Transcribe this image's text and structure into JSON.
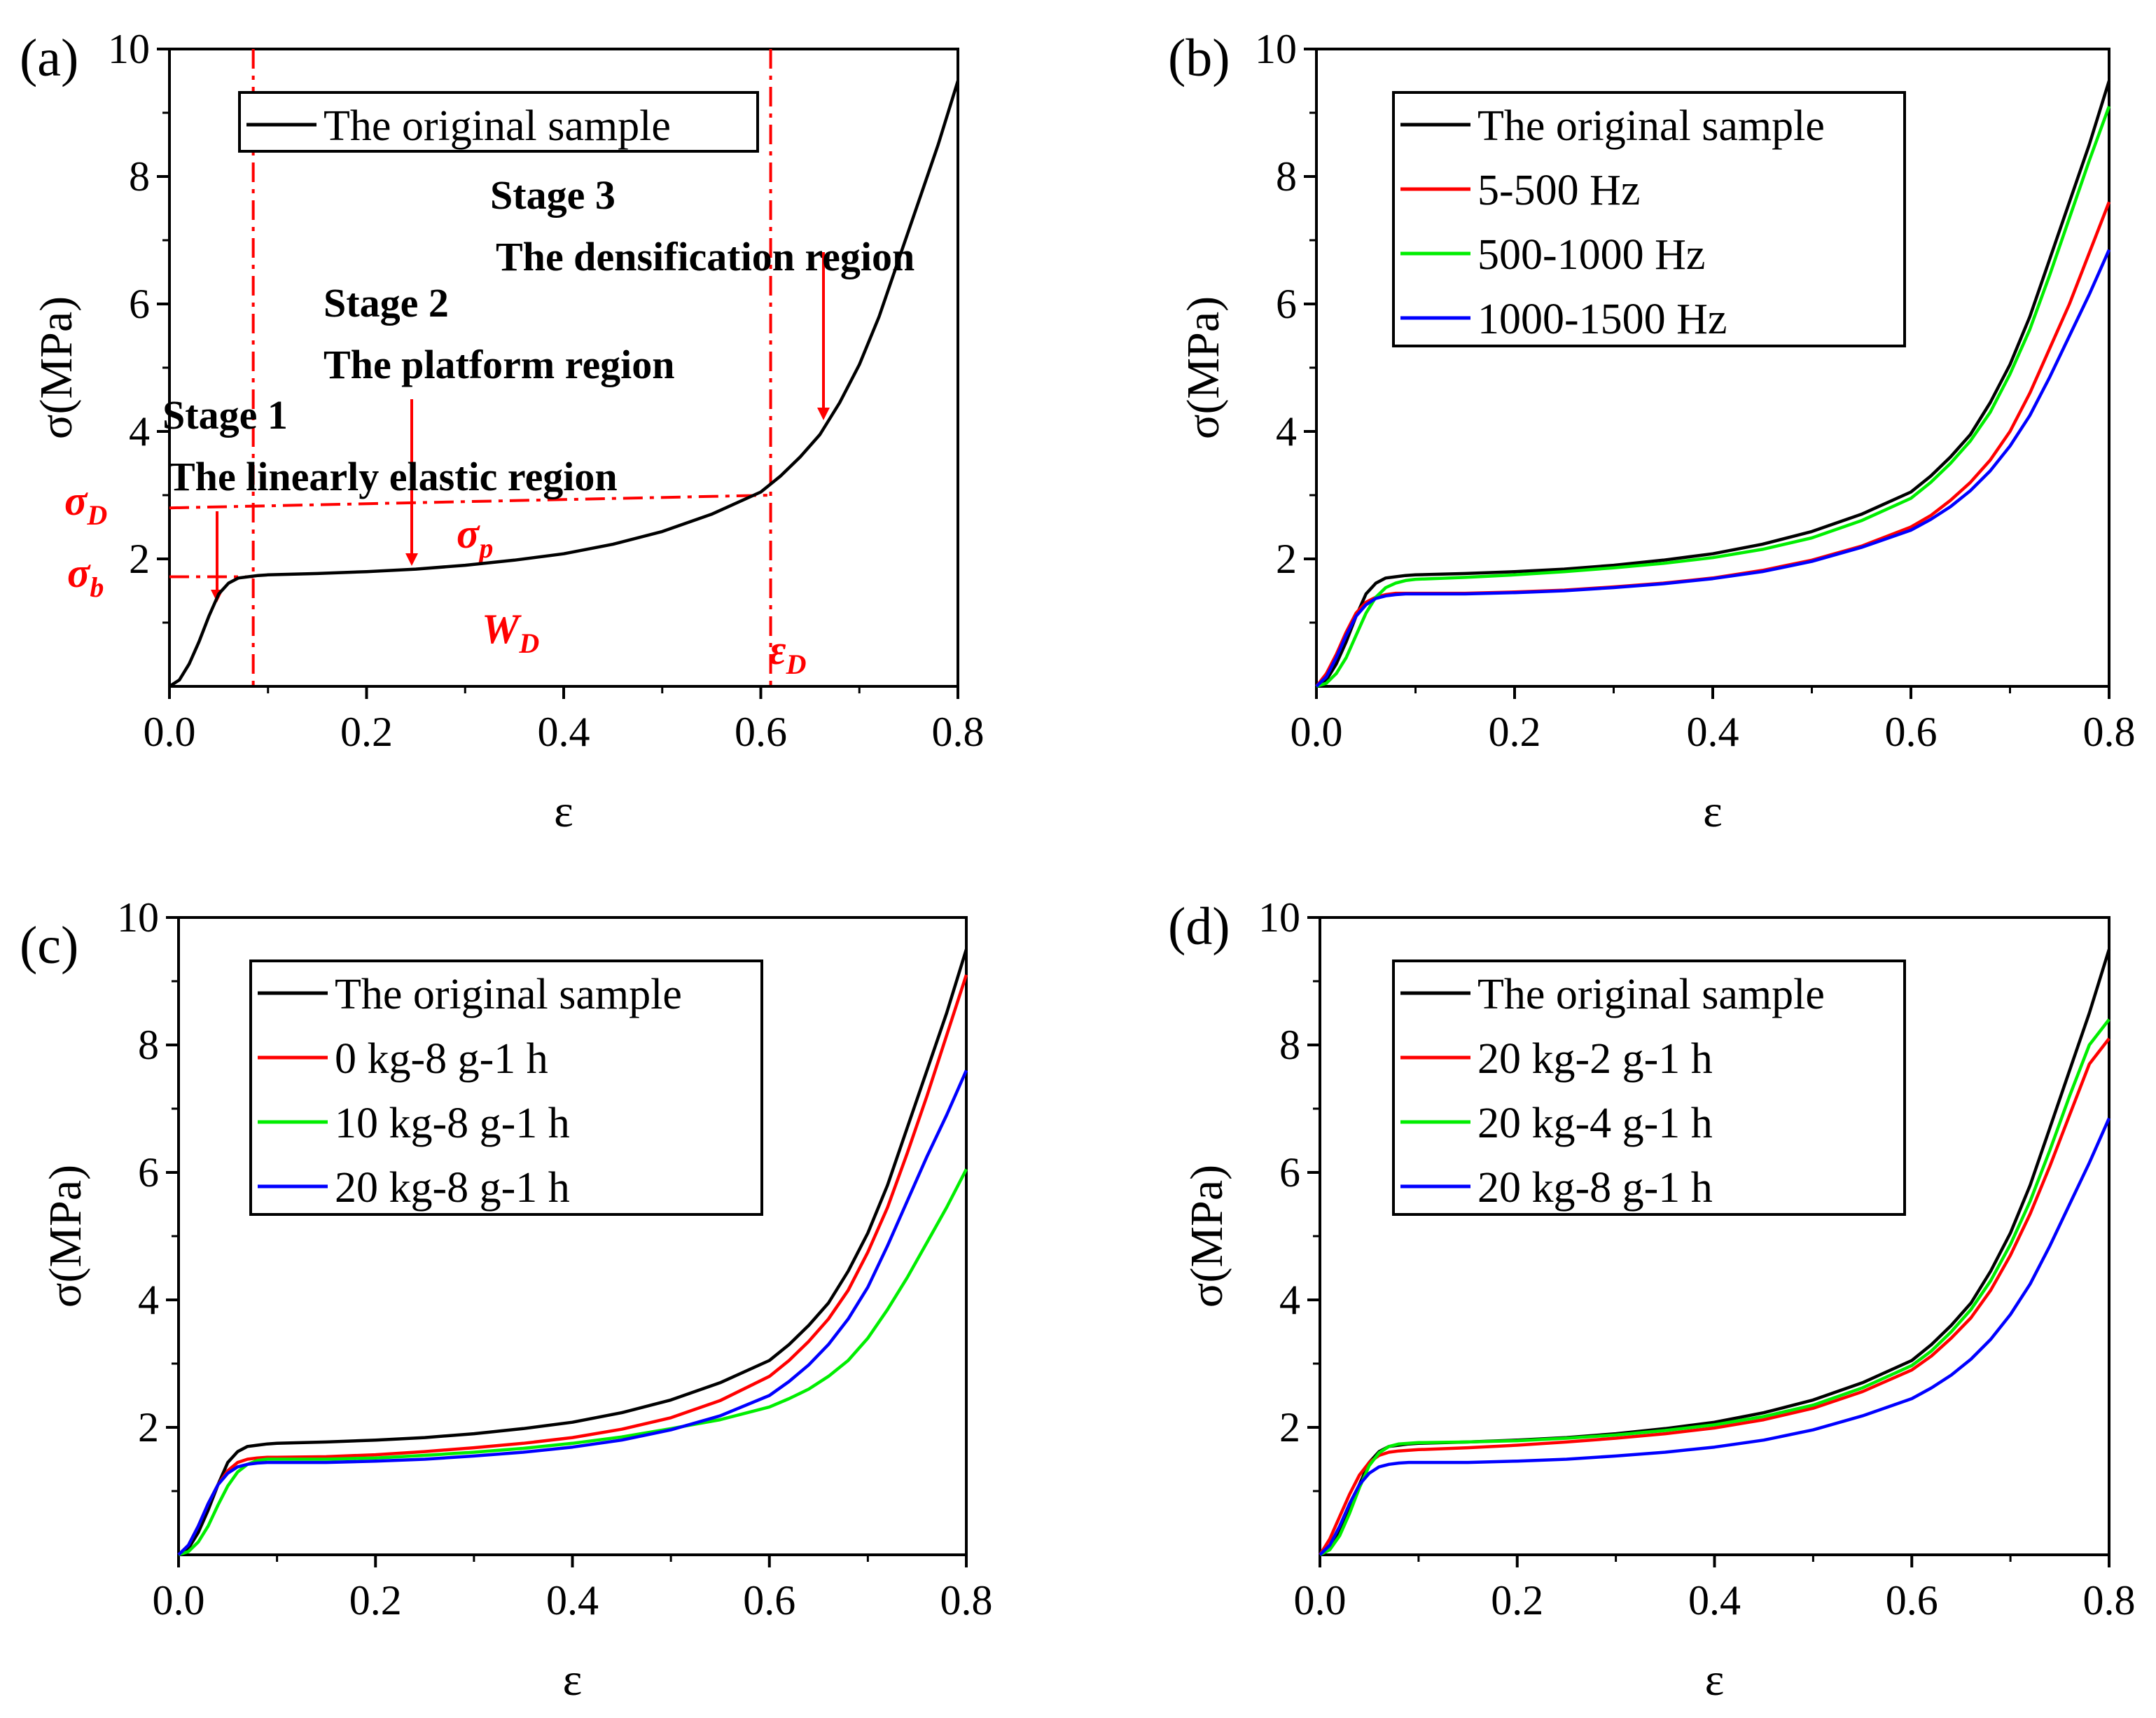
{
  "chart_data": [
    {
      "panel": "(a)",
      "type": "line",
      "xlabel": "ε",
      "ylabel": "σ(MPa)",
      "xlim": [
        0,
        0.8
      ],
      "ylim": [
        0,
        10
      ],
      "xticks": [
        "0.0",
        "0.2",
        "0.4",
        "0.6",
        "0.8"
      ],
      "yticks": [
        "2",
        "4",
        "6",
        "8",
        "10"
      ],
      "legend": "top-left",
      "series": [
        {
          "name": "The original sample",
          "color": "#000000",
          "x": [
            0,
            0.01,
            0.02,
            0.03,
            0.04,
            0.05,
            0.06,
            0.07,
            0.08,
            0.09,
            0.1,
            0.15,
            0.2,
            0.25,
            0.3,
            0.35,
            0.4,
            0.45,
            0.5,
            0.55,
            0.6,
            0.62,
            0.64,
            0.66,
            0.68,
            0.7,
            0.72,
            0.74,
            0.76,
            0.78,
            0.8
          ],
          "y": [
            0,
            0.1,
            0.35,
            0.7,
            1.1,
            1.45,
            1.62,
            1.7,
            1.72,
            1.74,
            1.75,
            1.77,
            1.8,
            1.84,
            1.9,
            1.98,
            2.08,
            2.23,
            2.43,
            2.7,
            3.05,
            3.3,
            3.6,
            3.95,
            4.45,
            5.05,
            5.8,
            6.7,
            7.6,
            8.5,
            9.5
          ]
        }
      ],
      "annotations": {
        "stage1_title": "Stage 1",
        "stage1_desc": "The linearly elastic region",
        "stage2_title": "Stage 2",
        "stage2_desc": "The platform region",
        "stage3_title": "Stage 3",
        "stage3_desc": "The densification region",
        "sigma_d": "σ",
        "sigma_d_sub": "D",
        "sigma_b": "σ",
        "sigma_b_sub": "b",
        "sigma_p": "σ",
        "sigma_p_sub": "p",
        "w_d": "W",
        "w_d_sub": "D",
        "eps_d": "ε",
        "eps_d_sub": "D",
        "vline_x": [
          0.085,
          0.61
        ],
        "hline_y": [
          2.8,
          1.72
        ],
        "annotation_color": "#ff0000"
      }
    },
    {
      "panel": "(b)",
      "type": "line",
      "xlabel": "ε",
      "ylabel": "σ(MPa)",
      "xlim": [
        0,
        0.8
      ],
      "ylim": [
        0,
        10
      ],
      "xticks": [
        "0.0",
        "0.2",
        "0.4",
        "0.6",
        "0.8"
      ],
      "yticks": [
        "2",
        "4",
        "6",
        "8",
        "10"
      ],
      "legend": "top-left",
      "series": [
        {
          "name": "The original sample",
          "color": "#000000",
          "x": [
            0,
            0.01,
            0.02,
            0.03,
            0.04,
            0.05,
            0.06,
            0.07,
            0.08,
            0.09,
            0.1,
            0.15,
            0.2,
            0.25,
            0.3,
            0.35,
            0.4,
            0.45,
            0.5,
            0.55,
            0.6,
            0.62,
            0.64,
            0.66,
            0.68,
            0.7,
            0.72,
            0.74,
            0.76,
            0.78,
            0.8
          ],
          "y": [
            0,
            0.1,
            0.35,
            0.7,
            1.1,
            1.45,
            1.62,
            1.7,
            1.72,
            1.74,
            1.75,
            1.77,
            1.8,
            1.84,
            1.9,
            1.98,
            2.08,
            2.23,
            2.43,
            2.7,
            3.05,
            3.3,
            3.6,
            3.95,
            4.45,
            5.05,
            5.8,
            6.7,
            7.6,
            8.5,
            9.5
          ]
        },
        {
          "name": "5-500 Hz",
          "color": "#ff0000",
          "x": [
            0,
            0.01,
            0.02,
            0.03,
            0.04,
            0.05,
            0.06,
            0.07,
            0.08,
            0.09,
            0.1,
            0.15,
            0.2,
            0.25,
            0.3,
            0.35,
            0.4,
            0.45,
            0.5,
            0.55,
            0.6,
            0.62,
            0.64,
            0.66,
            0.68,
            0.7,
            0.72,
            0.74,
            0.76,
            0.78,
            0.8
          ],
          "y": [
            0,
            0.2,
            0.5,
            0.85,
            1.15,
            1.32,
            1.4,
            1.44,
            1.46,
            1.46,
            1.46,
            1.46,
            1.48,
            1.51,
            1.56,
            1.62,
            1.7,
            1.82,
            1.98,
            2.2,
            2.5,
            2.68,
            2.92,
            3.2,
            3.55,
            4.0,
            4.6,
            5.3,
            6.0,
            6.8,
            7.6
          ]
        },
        {
          "name": "500-1000 Hz",
          "color": "#00ee00",
          "x": [
            0,
            0.01,
            0.02,
            0.03,
            0.04,
            0.05,
            0.06,
            0.07,
            0.08,
            0.09,
            0.1,
            0.15,
            0.2,
            0.25,
            0.3,
            0.35,
            0.4,
            0.45,
            0.5,
            0.55,
            0.6,
            0.62,
            0.64,
            0.66,
            0.68,
            0.7,
            0.72,
            0.74,
            0.76,
            0.78,
            0.8
          ],
          "y": [
            0,
            0.05,
            0.2,
            0.45,
            0.8,
            1.15,
            1.4,
            1.55,
            1.62,
            1.66,
            1.68,
            1.71,
            1.75,
            1.8,
            1.86,
            1.93,
            2.02,
            2.15,
            2.33,
            2.6,
            2.95,
            3.2,
            3.5,
            3.85,
            4.3,
            4.9,
            5.6,
            6.45,
            7.35,
            8.25,
            9.1
          ]
        },
        {
          "name": "1000-1500 Hz",
          "color": "#0000ff",
          "x": [
            0,
            0.01,
            0.02,
            0.03,
            0.04,
            0.05,
            0.06,
            0.07,
            0.08,
            0.09,
            0.1,
            0.15,
            0.2,
            0.25,
            0.3,
            0.35,
            0.4,
            0.45,
            0.5,
            0.55,
            0.6,
            0.62,
            0.64,
            0.66,
            0.68,
            0.7,
            0.72,
            0.74,
            0.76,
            0.78,
            0.8
          ],
          "y": [
            0,
            0.15,
            0.45,
            0.8,
            1.1,
            1.28,
            1.38,
            1.42,
            1.44,
            1.45,
            1.45,
            1.45,
            1.47,
            1.5,
            1.55,
            1.61,
            1.69,
            1.8,
            1.96,
            2.18,
            2.45,
            2.62,
            2.82,
            3.07,
            3.38,
            3.77,
            4.25,
            4.85,
            5.5,
            6.15,
            6.85
          ]
        }
      ]
    },
    {
      "panel": "(c)",
      "type": "line",
      "xlabel": "ε",
      "ylabel": "σ(MPa)",
      "xlim": [
        0,
        0.8
      ],
      "ylim": [
        0,
        10
      ],
      "xticks": [
        "0.0",
        "0.2",
        "0.4",
        "0.6",
        "0.8"
      ],
      "yticks": [
        "2",
        "4",
        "6",
        "8",
        "10"
      ],
      "legend": "top-left",
      "series": [
        {
          "name": "The original sample",
          "color": "#000000",
          "x": [
            0,
            0.01,
            0.02,
            0.03,
            0.04,
            0.05,
            0.06,
            0.07,
            0.08,
            0.09,
            0.1,
            0.15,
            0.2,
            0.25,
            0.3,
            0.35,
            0.4,
            0.45,
            0.5,
            0.55,
            0.6,
            0.62,
            0.64,
            0.66,
            0.68,
            0.7,
            0.72,
            0.74,
            0.76,
            0.78,
            0.8
          ],
          "y": [
            0,
            0.1,
            0.35,
            0.7,
            1.1,
            1.45,
            1.62,
            1.7,
            1.72,
            1.74,
            1.75,
            1.77,
            1.8,
            1.84,
            1.9,
            1.98,
            2.08,
            2.23,
            2.43,
            2.7,
            3.05,
            3.3,
            3.6,
            3.95,
            4.45,
            5.05,
            5.8,
            6.7,
            7.6,
            8.5,
            9.5
          ]
        },
        {
          "name": "0 kg-8 g-1 h",
          "color": "#ff0000",
          "x": [
            0,
            0.01,
            0.02,
            0.03,
            0.04,
            0.05,
            0.06,
            0.07,
            0.08,
            0.09,
            0.1,
            0.15,
            0.2,
            0.25,
            0.3,
            0.35,
            0.4,
            0.45,
            0.5,
            0.55,
            0.6,
            0.62,
            0.64,
            0.66,
            0.68,
            0.7,
            0.72,
            0.74,
            0.76,
            0.78,
            0.8
          ],
          "y": [
            0,
            0.15,
            0.45,
            0.8,
            1.1,
            1.32,
            1.45,
            1.5,
            1.52,
            1.53,
            1.53,
            1.54,
            1.57,
            1.62,
            1.68,
            1.75,
            1.84,
            1.97,
            2.15,
            2.42,
            2.8,
            3.05,
            3.35,
            3.7,
            4.15,
            4.75,
            5.45,
            6.3,
            7.2,
            8.15,
            9.1
          ]
        },
        {
          "name": "10 kg-8 g-1 h",
          "color": "#00ee00",
          "x": [
            0,
            0.01,
            0.02,
            0.03,
            0.04,
            0.05,
            0.06,
            0.07,
            0.08,
            0.09,
            0.1,
            0.15,
            0.2,
            0.25,
            0.3,
            0.35,
            0.4,
            0.45,
            0.5,
            0.55,
            0.6,
            0.62,
            0.64,
            0.66,
            0.68,
            0.7,
            0.72,
            0.74,
            0.76,
            0.78,
            0.8
          ],
          "y": [
            0,
            0.05,
            0.2,
            0.45,
            0.78,
            1.08,
            1.3,
            1.42,
            1.48,
            1.5,
            1.5,
            1.5,
            1.52,
            1.56,
            1.61,
            1.67,
            1.75,
            1.85,
            1.98,
            2.12,
            2.32,
            2.45,
            2.6,
            2.8,
            3.05,
            3.4,
            3.85,
            4.35,
            4.9,
            5.45,
            6.05
          ]
        },
        {
          "name": "20 kg-8 g-1 h",
          "color": "#0000ff",
          "x": [
            0,
            0.01,
            0.02,
            0.03,
            0.04,
            0.05,
            0.06,
            0.07,
            0.08,
            0.09,
            0.1,
            0.15,
            0.2,
            0.25,
            0.3,
            0.35,
            0.4,
            0.45,
            0.5,
            0.55,
            0.6,
            0.62,
            0.64,
            0.66,
            0.68,
            0.7,
            0.72,
            0.74,
            0.76,
            0.78,
            0.8
          ],
          "y": [
            0,
            0.15,
            0.45,
            0.8,
            1.1,
            1.28,
            1.38,
            1.42,
            1.44,
            1.45,
            1.45,
            1.45,
            1.47,
            1.5,
            1.55,
            1.61,
            1.69,
            1.8,
            1.96,
            2.18,
            2.5,
            2.72,
            2.98,
            3.3,
            3.7,
            4.2,
            4.85,
            5.55,
            6.25,
            6.9,
            7.6
          ]
        }
      ]
    },
    {
      "panel": "(d)",
      "type": "line",
      "xlabel": "ε",
      "ylabel": "σ(MPa)",
      "xlim": [
        0,
        0.8
      ],
      "ylim": [
        0,
        10
      ],
      "xticks": [
        "0.0",
        "0.2",
        "0.4",
        "0.6",
        "0.8"
      ],
      "yticks": [
        "2",
        "4",
        "6",
        "8",
        "10"
      ],
      "legend": "top-left",
      "series": [
        {
          "name": "The original sample",
          "color": "#000000",
          "x": [
            0,
            0.01,
            0.02,
            0.03,
            0.04,
            0.05,
            0.06,
            0.07,
            0.08,
            0.09,
            0.1,
            0.15,
            0.2,
            0.25,
            0.3,
            0.35,
            0.4,
            0.45,
            0.5,
            0.55,
            0.6,
            0.62,
            0.64,
            0.66,
            0.68,
            0.7,
            0.72,
            0.74,
            0.76,
            0.78,
            0.8
          ],
          "y": [
            0,
            0.1,
            0.35,
            0.7,
            1.1,
            1.45,
            1.62,
            1.7,
            1.72,
            1.74,
            1.75,
            1.77,
            1.8,
            1.84,
            1.9,
            1.98,
            2.08,
            2.23,
            2.43,
            2.7,
            3.05,
            3.3,
            3.6,
            3.95,
            4.45,
            5.05,
            5.8,
            6.7,
            7.6,
            8.5,
            9.5
          ]
        },
        {
          "name": "20 kg-2 g-1 h",
          "color": "#ff0000",
          "x": [
            0,
            0.01,
            0.02,
            0.03,
            0.04,
            0.05,
            0.06,
            0.07,
            0.08,
            0.09,
            0.1,
            0.15,
            0.2,
            0.25,
            0.3,
            0.35,
            0.4,
            0.45,
            0.5,
            0.55,
            0.6,
            0.62,
            0.64,
            0.66,
            0.68,
            0.7,
            0.72,
            0.74,
            0.76,
            0.78,
            0.8
          ],
          "y": [
            0,
            0.25,
            0.6,
            0.95,
            1.25,
            1.45,
            1.56,
            1.61,
            1.63,
            1.64,
            1.65,
            1.68,
            1.72,
            1.77,
            1.83,
            1.9,
            1.99,
            2.12,
            2.3,
            2.56,
            2.9,
            3.12,
            3.4,
            3.72,
            4.15,
            4.7,
            5.35,
            6.1,
            6.9,
            7.7,
            8.1
          ]
        },
        {
          "name": "20 kg-4 g-1 h",
          "color": "#00ee00",
          "x": [
            0,
            0.01,
            0.02,
            0.03,
            0.04,
            0.05,
            0.06,
            0.07,
            0.08,
            0.09,
            0.1,
            0.15,
            0.2,
            0.25,
            0.3,
            0.35,
            0.4,
            0.45,
            0.5,
            0.55,
            0.6,
            0.62,
            0.64,
            0.66,
            0.68,
            0.7,
            0.72,
            0.74,
            0.76,
            0.78,
            0.8
          ],
          "y": [
            0,
            0.08,
            0.3,
            0.65,
            1.05,
            1.4,
            1.6,
            1.7,
            1.74,
            1.75,
            1.76,
            1.77,
            1.79,
            1.83,
            1.88,
            1.95,
            2.04,
            2.17,
            2.35,
            2.62,
            2.97,
            3.2,
            3.5,
            3.85,
            4.3,
            4.87,
            5.55,
            6.35,
            7.2,
            8.0,
            8.4
          ]
        },
        {
          "name": "20 kg-8 g-1 h",
          "color": "#0000ff",
          "x": [
            0,
            0.01,
            0.02,
            0.03,
            0.04,
            0.05,
            0.06,
            0.07,
            0.08,
            0.09,
            0.1,
            0.15,
            0.2,
            0.25,
            0.3,
            0.35,
            0.4,
            0.45,
            0.5,
            0.55,
            0.6,
            0.62,
            0.64,
            0.66,
            0.68,
            0.7,
            0.72,
            0.74,
            0.76,
            0.78,
            0.8
          ],
          "y": [
            0,
            0.15,
            0.45,
            0.8,
            1.1,
            1.28,
            1.38,
            1.42,
            1.44,
            1.45,
            1.45,
            1.45,
            1.47,
            1.5,
            1.55,
            1.61,
            1.69,
            1.8,
            1.96,
            2.18,
            2.45,
            2.62,
            2.82,
            3.07,
            3.38,
            3.77,
            4.25,
            4.85,
            5.5,
            6.15,
            6.85
          ]
        }
      ]
    }
  ]
}
